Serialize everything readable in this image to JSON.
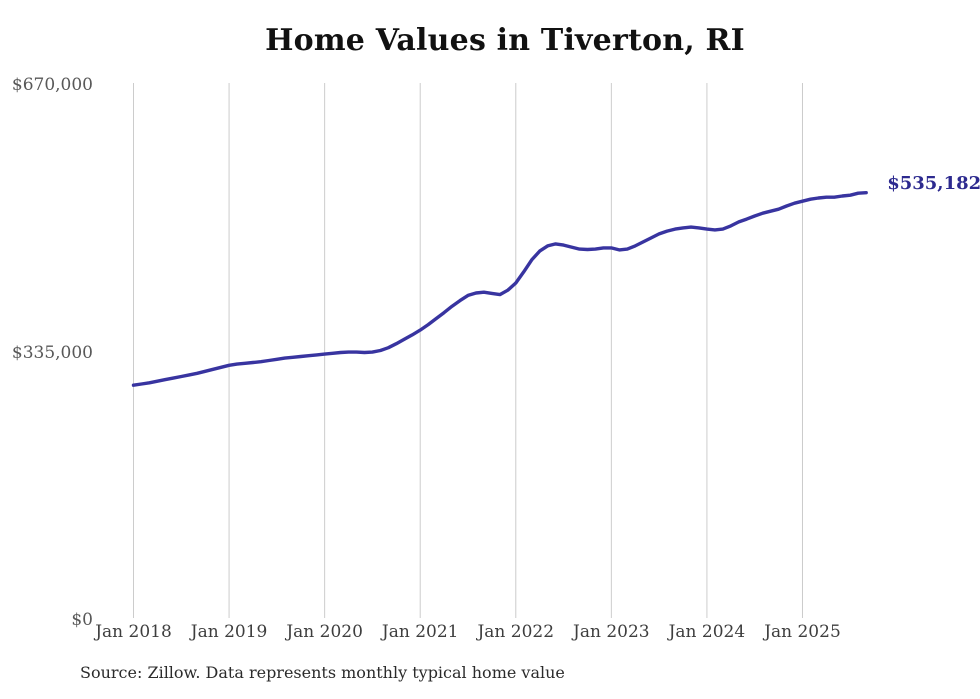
{
  "chart_data": {
    "type": "line",
    "title": "Home Values in Tiverton, RI",
    "source_note": "Source: Zillow. Data represents monthly typical home value",
    "end_label": "$535,182",
    "end_value": 535182,
    "x_tick_labels": [
      "Jan 2018",
      "Jan 2019",
      "Jan 2020",
      "Jan 2021",
      "Jan 2022",
      "Jan 2023",
      "Jan 2024",
      "Jan 2025"
    ],
    "y_ticks": [
      {
        "label": "$0",
        "value": 0
      },
      {
        "label": "$335,000",
        "value": 335000
      },
      {
        "label": "$670,000",
        "value": 670000
      }
    ],
    "ylim": [
      0,
      670000
    ],
    "grid": "vertical-only",
    "legend": "none",
    "line_color": "#3834a0",
    "end_label_color": "#2d2a8f",
    "grid_color": "#cccccc",
    "series": [
      {
        "name": "Monthly typical home value",
        "months": [
          "2018-01",
          "2018-02",
          "2018-03",
          "2018-04",
          "2018-05",
          "2018-06",
          "2018-07",
          "2018-08",
          "2018-09",
          "2018-10",
          "2018-11",
          "2018-12",
          "2019-01",
          "2019-02",
          "2019-03",
          "2019-04",
          "2019-05",
          "2019-06",
          "2019-07",
          "2019-08",
          "2019-09",
          "2019-10",
          "2019-11",
          "2019-12",
          "2020-01",
          "2020-02",
          "2020-03",
          "2020-04",
          "2020-05",
          "2020-06",
          "2020-07",
          "2020-08",
          "2020-09",
          "2020-10",
          "2020-11",
          "2020-12",
          "2021-01",
          "2021-02",
          "2021-03",
          "2021-04",
          "2021-05",
          "2021-06",
          "2021-07",
          "2021-08",
          "2021-09",
          "2021-10",
          "2021-11",
          "2021-12",
          "2022-01",
          "2022-02",
          "2022-03",
          "2022-04",
          "2022-05",
          "2022-06",
          "2022-07",
          "2022-08",
          "2022-09",
          "2022-10",
          "2022-11",
          "2022-12",
          "2023-01",
          "2023-02",
          "2023-03",
          "2023-04",
          "2023-05",
          "2023-06",
          "2023-07",
          "2023-08",
          "2023-09",
          "2023-10",
          "2023-11",
          "2023-12",
          "2024-01",
          "2024-02",
          "2024-03",
          "2024-04",
          "2024-05",
          "2024-06",
          "2024-07",
          "2024-08",
          "2024-09",
          "2024-10",
          "2024-11",
          "2024-12",
          "2025-01",
          "2025-02",
          "2025-03",
          "2025-04",
          "2025-05",
          "2025-06",
          "2025-07",
          "2025-08",
          "2025-09"
        ],
        "values": [
          294000,
          295500,
          297000,
          299000,
          301000,
          303000,
          305000,
          307000,
          309000,
          311500,
          314000,
          316500,
          319000,
          320500,
          321500,
          322500,
          323500,
          325000,
          326500,
          328000,
          329000,
          330000,
          331000,
          332000,
          333000,
          334000,
          335000,
          335500,
          335500,
          335000,
          335500,
          337500,
          341000,
          346000,
          351500,
          357000,
          363000,
          370000,
          377500,
          385000,
          393000,
          400000,
          406500,
          409500,
          410500,
          409000,
          407500,
          413000,
          422000,
          436000,
          451000,
          462000,
          468500,
          471000,
          469500,
          467000,
          464500,
          464000,
          464500,
          466000,
          466000,
          463500,
          464500,
          468500,
          473500,
          478500,
          483500,
          487000,
          489500,
          491000,
          492000,
          491000,
          489500,
          488500,
          489500,
          493500,
          498500,
          502000,
          506000,
          509500,
          512000,
          514500,
          518500,
          522000,
          524500,
          527000,
          528500,
          529500,
          529500,
          531000,
          532000,
          534500,
          535182
        ]
      }
    ]
  }
}
